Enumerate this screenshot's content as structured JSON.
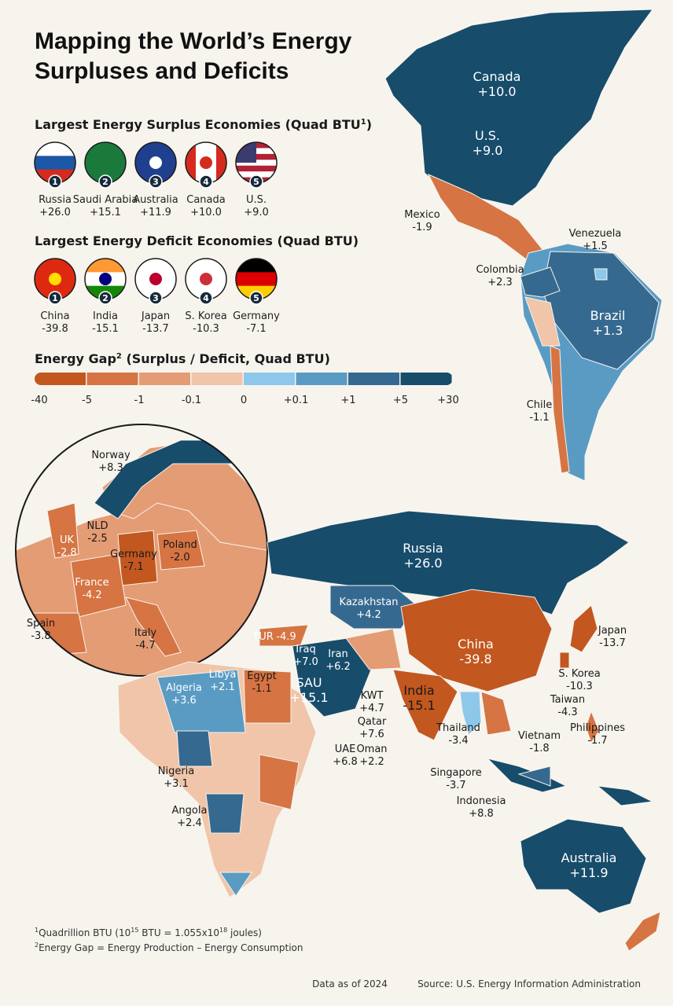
{
  "title": [
    "Mapping the World’s Energy",
    "Surpluses and Deficits"
  ],
  "surplus": {
    "heading": "Largest Energy Surplus Economies (Quad BTU",
    "heading_sup": "1",
    "heading_end": ")",
    "economies": [
      {
        "rank": 1,
        "name": "Russia",
        "value": "+26.0"
      },
      {
        "rank": 2,
        "name": "Saudi Arabia",
        "value": "+15.1"
      },
      {
        "rank": 3,
        "name": "Australia",
        "value": "+11.9"
      },
      {
        "rank": 4,
        "name": "Canada",
        "value": "+10.0"
      },
      {
        "rank": 5,
        "name": "U.S.",
        "value": "+9.0"
      }
    ]
  },
  "deficit": {
    "heading": "Largest Energy Deficit Economies (Quad BTU)",
    "economies": [
      {
        "rank": 1,
        "name": "China",
        "value": "-39.8"
      },
      {
        "rank": 2,
        "name": "India",
        "value": "-15.1"
      },
      {
        "rank": 3,
        "name": "Japan",
        "value": "-13.7"
      },
      {
        "rank": 4,
        "name": "S. Korea",
        "value": "-10.3"
      },
      {
        "rank": 5,
        "name": "Germany",
        "value": "-7.1"
      }
    ]
  },
  "legend": {
    "heading": "Energy Gap",
    "heading_sup": "2",
    "heading_end": " (Surplus / Deficit, Quad BTU)",
    "colors": [
      "#c2571f",
      "#d67443",
      "#e49c74",
      "#f0c5a9",
      "#8dc8ea",
      "#5a9bc4",
      "#36698f",
      "#174c6b"
    ],
    "ticks": [
      "-40",
      "-5",
      "-1",
      "-0.1",
      "0",
      "+0.1",
      "+1",
      "+5",
      "+30"
    ]
  },
  "map_labels": [
    {
      "name": "Canada",
      "value": "+10.0"
    },
    {
      "name": "U.S.",
      "value": "+9.0"
    },
    {
      "name": "Mexico",
      "value": "-1.9"
    },
    {
      "name": "Venezuela",
      "value": "+1.5"
    },
    {
      "name": "Colombia",
      "value": "+2.3"
    },
    {
      "name": "Brazil",
      "value": "+1.3"
    },
    {
      "name": "Chile",
      "value": "-1.1"
    },
    {
      "name": "Norway",
      "value": "+8.3"
    },
    {
      "name": "NLD",
      "value": "-2.5"
    },
    {
      "name": "UK",
      "value": "-2.8"
    },
    {
      "name": "Germany",
      "value": "-7.1"
    },
    {
      "name": "Poland",
      "value": "-2.0"
    },
    {
      "name": "France",
      "value": "-4.2"
    },
    {
      "name": "Spain",
      "value": "-3.8"
    },
    {
      "name": "Italy",
      "value": "-4.7"
    },
    {
      "name": "Russia",
      "value": "+26.0"
    },
    {
      "name": "Kazakhstan",
      "value": "+4.2"
    },
    {
      "name": "TUR",
      "value": "-4.9"
    },
    {
      "name": "Iraq",
      "value": "+7.0"
    },
    {
      "name": "Iran",
      "value": "+6.2"
    },
    {
      "name": "Egypt",
      "value": "-1.1"
    },
    {
      "name": "Libya",
      "value": "+2.1"
    },
    {
      "name": "Algeria",
      "value": "+3.6"
    },
    {
      "name": "SAU",
      "value": "+15.1"
    },
    {
      "name": "KWT",
      "value": "+4.7"
    },
    {
      "name": "Qatar",
      "value": "+7.6"
    },
    {
      "name": "UAE",
      "value": "+6.8"
    },
    {
      "name": "Oman",
      "value": "+2.2"
    },
    {
      "name": "China",
      "value": "-39.8"
    },
    {
      "name": "India",
      "value": "-15.1"
    },
    {
      "name": "Japan",
      "value": "-13.7"
    },
    {
      "name": "S. Korea",
      "value": "-10.3"
    },
    {
      "name": "Taiwan",
      "value": "-4.3"
    },
    {
      "name": "Philippines",
      "value": "-1.7"
    },
    {
      "name": "Thailand",
      "value": "-3.4"
    },
    {
      "name": "Vietnam",
      "value": "-1.8"
    },
    {
      "name": "Singapore",
      "value": "-3.7"
    },
    {
      "name": "Indonesia",
      "value": "+8.8"
    },
    {
      "name": "Nigeria",
      "value": "+3.1"
    },
    {
      "name": "Angola",
      "value": "+2.4"
    },
    {
      "name": "Australia",
      "value": "+11.9"
    }
  ],
  "footnotes": [
    {
      "marker": "1",
      "parts": [
        "Quadrillion BTU (10",
        "15",
        " BTU = 1.055x10",
        "18",
        " joules)"
      ]
    },
    {
      "marker": "2",
      "text": "Energy Gap = Energy Production – Energy Consumption"
    }
  ],
  "date": "Data as of 2024",
  "source": "Source: U.S. Energy Information Administration"
}
